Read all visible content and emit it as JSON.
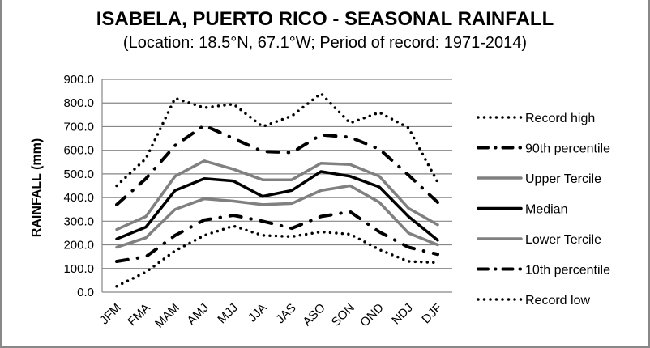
{
  "chart_data": {
    "type": "line",
    "title": "ISABELA, PUERTO RICO - SEASONAL RAINFALL",
    "subtitle": "(Location: 18.5°N, 67.1°W; Period of record: 1971-2014)",
    "xlabel": "",
    "ylabel": "RAINFALL (mm)",
    "ylim": [
      0,
      900
    ],
    "yticks": [
      "0.0",
      "100.0",
      "200.0",
      "300.0",
      "400.0",
      "500.0",
      "600.0",
      "700.0",
      "800.0",
      "900.0"
    ],
    "grid": true,
    "legend_position": "right",
    "categories": [
      "JFM",
      "FMA",
      "MAM",
      "AMJ",
      "MJJ",
      "JJA",
      "JAS",
      "ASO",
      "SON",
      "OND",
      "NDJ",
      "DJF"
    ],
    "series": [
      {
        "name": "Record high",
        "style": "dotted",
        "color": "#000000",
        "values": [
          450,
          565,
          820,
          780,
          795,
          700,
          745,
          840,
          715,
          760,
          695,
          465
        ]
      },
      {
        "name": "90th percentile",
        "style": "dash-dot",
        "color": "#000000",
        "values": [
          370,
          480,
          620,
          705,
          650,
          595,
          590,
          665,
          655,
          605,
          495,
          380
        ]
      },
      {
        "name": "Upper Tercile",
        "style": "solid",
        "color": "#808080",
        "values": [
          265,
          320,
          490,
          555,
          520,
          475,
          475,
          545,
          540,
          490,
          355,
          285
        ]
      },
      {
        "name": "Median",
        "style": "solid",
        "color": "#000000",
        "values": [
          225,
          275,
          430,
          480,
          470,
          405,
          430,
          510,
          490,
          445,
          320,
          220
        ]
      },
      {
        "name": "Lower Tercile",
        "style": "solid",
        "color": "#808080",
        "values": [
          190,
          230,
          350,
          395,
          385,
          370,
          375,
          430,
          450,
          380,
          250,
          200
        ]
      },
      {
        "name": "10th percentile",
        "style": "dash-dot",
        "color": "#000000",
        "values": [
          130,
          150,
          240,
          305,
          325,
          300,
          270,
          320,
          340,
          255,
          190,
          160
        ]
      },
      {
        "name": "Record low",
        "style": "dotted",
        "color": "#000000",
        "values": [
          25,
          85,
          175,
          240,
          280,
          240,
          235,
          255,
          245,
          180,
          130,
          125
        ]
      }
    ]
  }
}
